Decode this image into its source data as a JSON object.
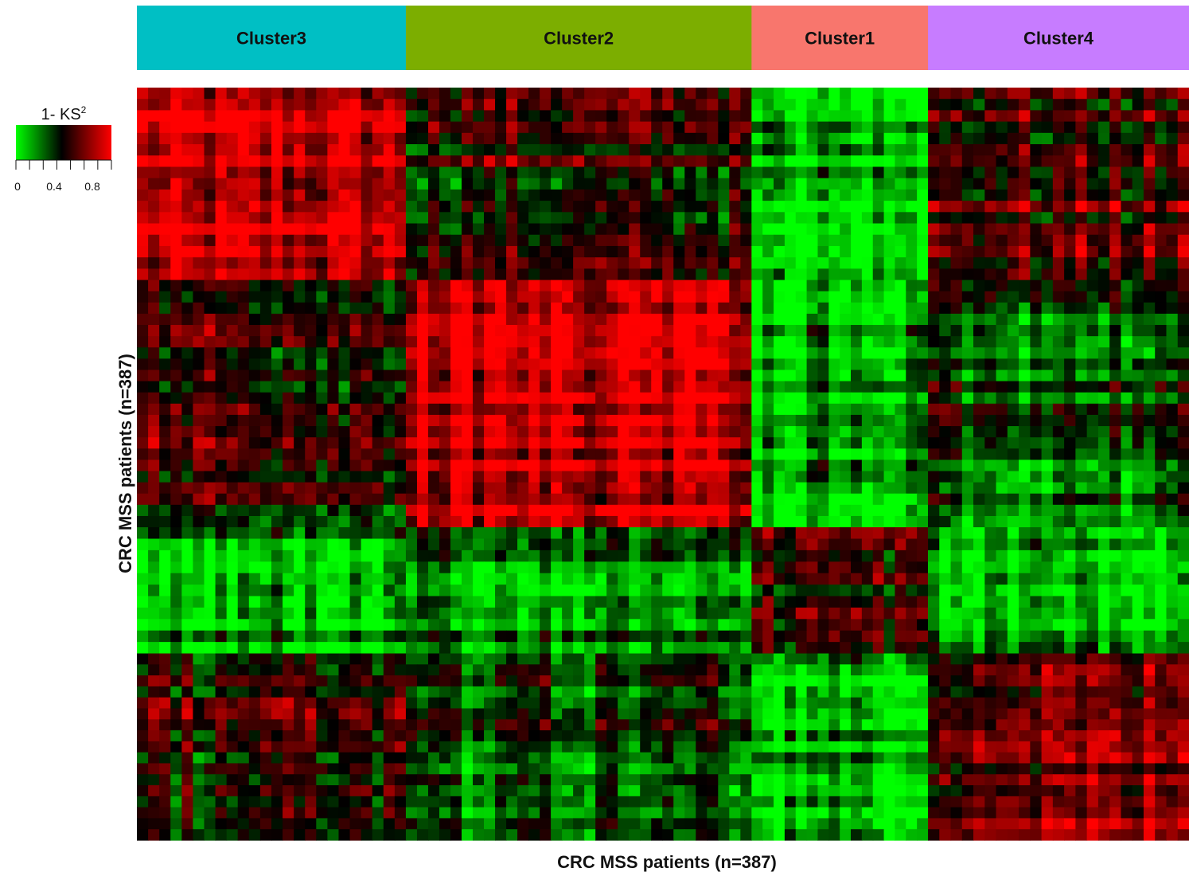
{
  "chart_data": {
    "type": "heatmap",
    "clusters": [
      {
        "name": "Cluster3",
        "color": "#00BFC4",
        "fraction": 0.34
      },
      {
        "name": "Cluster2",
        "color": "#7CAE00",
        "fraction": 0.437
      },
      {
        "name": "Cluster1",
        "color": "#F8766D",
        "fraction": 0.223
      },
      {
        "name": "Cluster4",
        "color": "#C77CFF",
        "fraction": 0.33
      }
    ],
    "column_order": [
      "Cluster3",
      "Cluster2",
      "Cluster1",
      "Cluster4"
    ],
    "row_order": [
      "Cluster3",
      "Cluster2",
      "Cluster1",
      "Cluster4"
    ],
    "similarity_matrix": {
      "rows": [
        "Cluster3",
        "Cluster2",
        "Cluster1",
        "Cluster4"
      ],
      "cols": [
        "Cluster3",
        "Cluster2",
        "Cluster1",
        "Cluster4"
      ],
      "values": [
        [
          0.85,
          0.55,
          0.12,
          0.6
        ],
        [
          0.55,
          0.85,
          0.15,
          0.35
        ],
        [
          0.2,
          0.25,
          0.55,
          0.15
        ],
        [
          0.55,
          0.4,
          0.1,
          0.75
        ]
      ]
    },
    "xlabel": "CRC MSS patients (n=387)",
    "ylabel": "CRC MSS patients (n=387)",
    "legend": {
      "title": "1- KS",
      "title_superscript": "2",
      "range": [
        0,
        1
      ],
      "ticks": [
        "0",
        "0.4",
        "0.8"
      ],
      "colors": [
        "#00FF00",
        "#000000",
        "#FF0000"
      ],
      "position": "top-left"
    }
  }
}
